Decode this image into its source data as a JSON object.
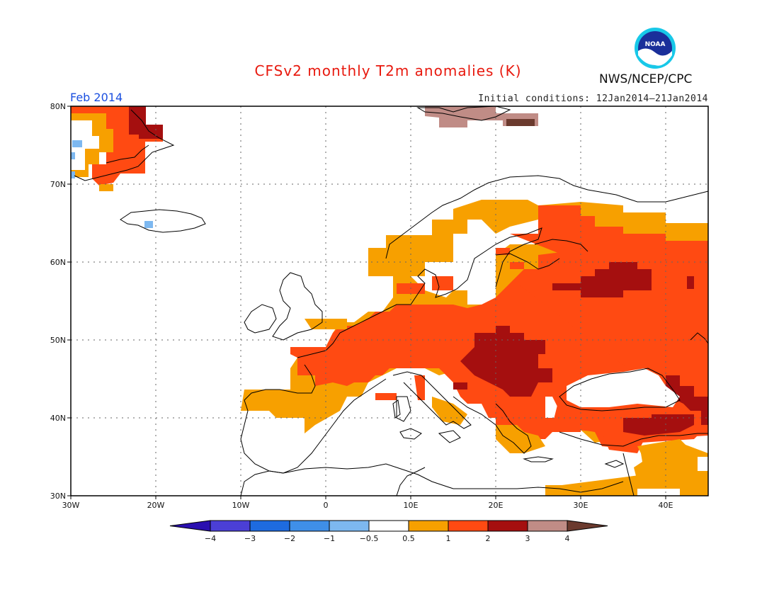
{
  "title": "CFSv2 monthly T2m anomalies (K)",
  "agency": "NWS/NCEP/CPC",
  "logo_text": "NOAA",
  "month_label": "Feb 2014",
  "initial_conditions": "Initial conditions: 12Jan2014–21Jan2014",
  "map": {
    "lon_range": [
      -30,
      45
    ],
    "lat_range": [
      30,
      80
    ],
    "lon_ticks": [
      "30W",
      "20W",
      "10W",
      "0",
      "10E",
      "20E",
      "30E",
      "40E"
    ],
    "lat_ticks": [
      "30N",
      "40N",
      "50N",
      "60N",
      "70N",
      "80N"
    ],
    "gridlines": true
  },
  "colorbar": {
    "labels": [
      "−4",
      "−3",
      "−2",
      "−1",
      "−0.5",
      "0.5",
      "1",
      "2",
      "3",
      "4"
    ],
    "colors": [
      "#2a0fb0",
      "#4b3fd6",
      "#1e6be0",
      "#3f8fe8",
      "#7db8f0",
      "#ffffff",
      "#f7a000",
      "#ff4a12",
      "#a50f0f",
      "#c08c86",
      "#6b3a2e"
    ]
  },
  "anomaly_levels": {
    "0.5-1": "#f7a000",
    "1-2": "#ff4a12",
    "2-3": "#a50f0f",
    "3-4": "#c08c86",
    "4+": "#6b3a2e",
    "-0.5--1": "#7db8f0"
  }
}
